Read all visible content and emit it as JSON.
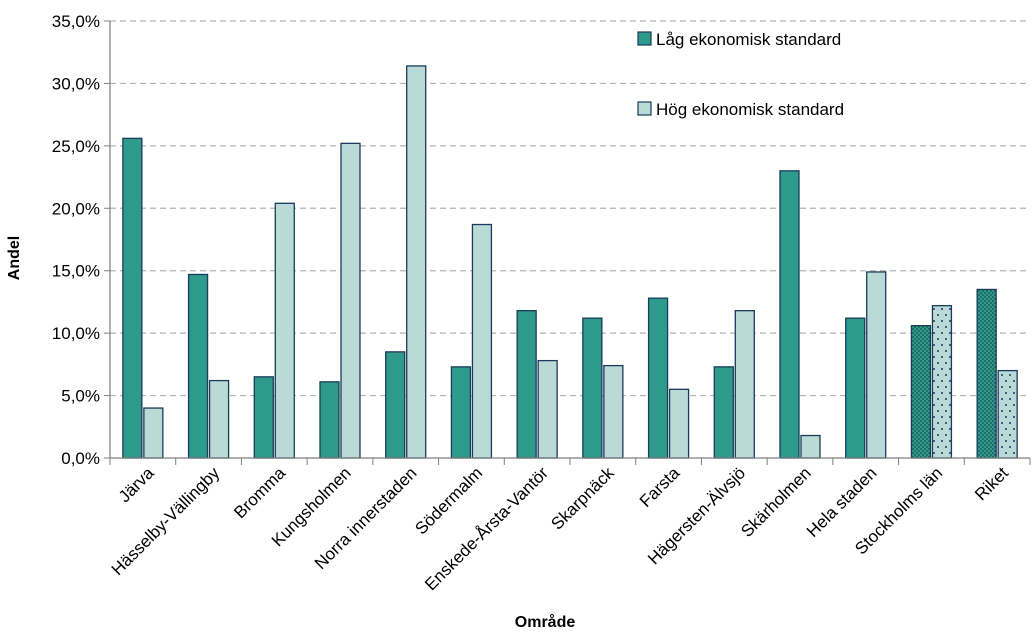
{
  "chart_data": {
    "type": "bar",
    "xlabel": "Område",
    "ylabel": "Andel",
    "ylim": [
      0,
      35
    ],
    "yticks": [
      "0,0%",
      "5,0%",
      "10,0%",
      "15,0%",
      "20,0%",
      "25,0%",
      "30,0%",
      "35,0%"
    ],
    "grid": "horizontal dashed",
    "legend_position": "top-right",
    "categories": [
      "Järva",
      "Hässelby-Vällingby",
      "Bromma",
      "Kungsholmen",
      "Norra innerstaden",
      "Södermalm",
      "Enskede-Årsta-Vantör",
      "Skarpnäck",
      "Farsta",
      "Hägersten-Älvsjö",
      "Skärholmen",
      "Hela staden",
      "Stockholms län",
      "Riket"
    ],
    "series": [
      {
        "name": "Låg ekonomisk standard",
        "color": "#2e9a8c",
        "values": [
          25.6,
          14.7,
          6.5,
          6.1,
          8.5,
          7.3,
          11.8,
          11.2,
          12.8,
          7.3,
          23.0,
          11.2,
          10.6,
          13.5
        ]
      },
      {
        "name": "Hög ekonomisk standard",
        "color": "#b9dad7",
        "values": [
          4.0,
          6.2,
          20.4,
          25.2,
          31.4,
          18.7,
          7.8,
          7.4,
          5.5,
          11.8,
          1.8,
          14.9,
          12.2,
          7.0
        ]
      }
    ],
    "patterned_categories": [
      "Stockholms län",
      "Riket"
    ]
  }
}
